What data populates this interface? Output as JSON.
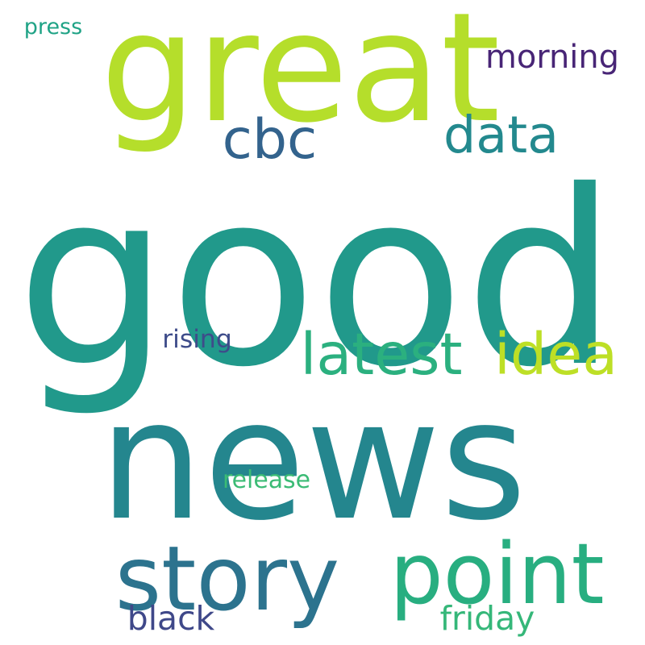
{
  "word_cloud": {
    "words": [
      {
        "id": "good",
        "text": "good",
        "color": "#21998b"
      },
      {
        "id": "news",
        "text": "news",
        "color": "#24868e"
      },
      {
        "id": "great",
        "text": "great",
        "color": "#b5de2b"
      },
      {
        "id": "cbc",
        "text": "cbc",
        "color": "#33638d"
      },
      {
        "id": "data",
        "text": "data",
        "color": "#23898e"
      },
      {
        "id": "morning",
        "text": "morning",
        "color": "#482576"
      },
      {
        "id": "press",
        "text": "press",
        "color": "#20a386"
      },
      {
        "id": "latest",
        "text": "latest",
        "color": "#2bb07f"
      },
      {
        "id": "idea",
        "text": "idea",
        "color": "#bddf26"
      },
      {
        "id": "rising",
        "text": "rising",
        "color": "#3e4c8a"
      },
      {
        "id": "release",
        "text": "release",
        "color": "#3bbb75"
      },
      {
        "id": "story",
        "text": "story",
        "color": "#2c738e"
      },
      {
        "id": "point",
        "text": "point",
        "color": "#28ae80"
      },
      {
        "id": "black",
        "text": "black",
        "color": "#3f4889"
      },
      {
        "id": "friday",
        "text": "friday",
        "color": "#35b779"
      }
    ]
  }
}
